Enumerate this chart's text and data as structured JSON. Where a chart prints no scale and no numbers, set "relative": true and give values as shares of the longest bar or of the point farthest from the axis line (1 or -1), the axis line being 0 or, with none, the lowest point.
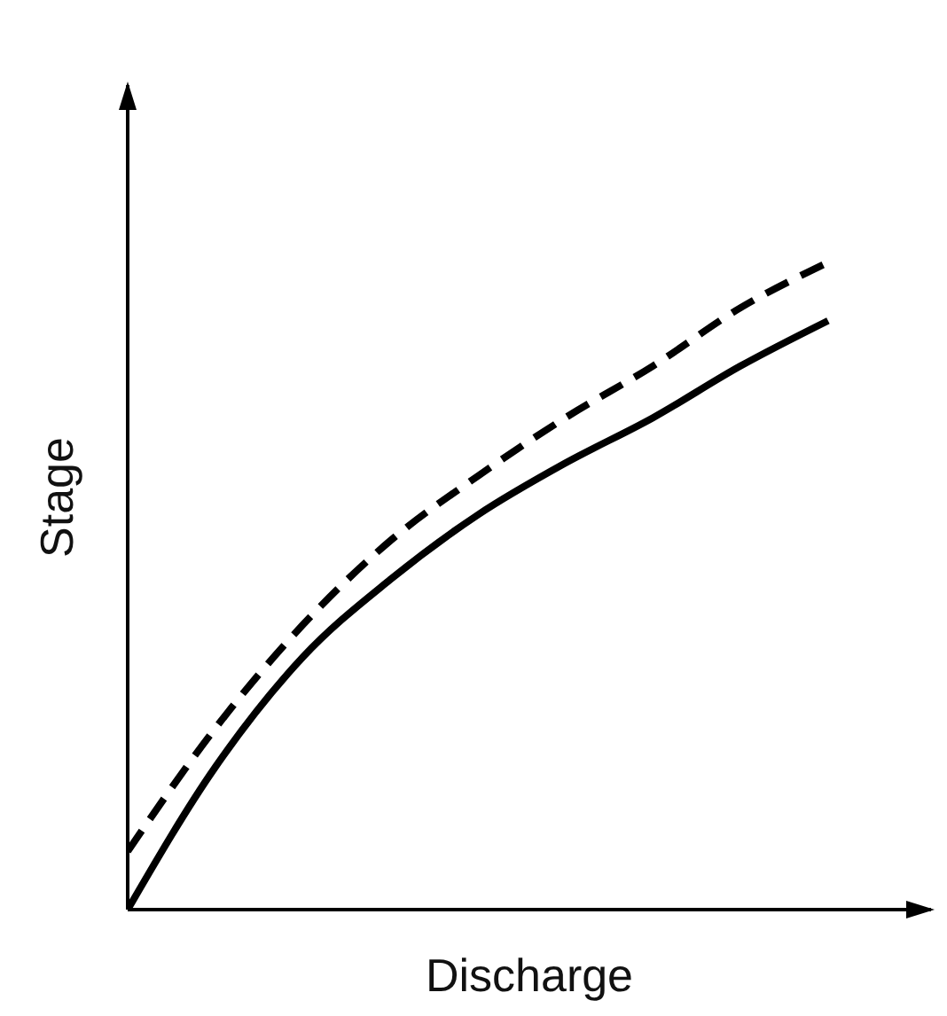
{
  "chart_data": {
    "type": "line",
    "xlabel": "Discharge",
    "ylabel": "Stage",
    "relative": true,
    "marker": "none",
    "categories": [
      null,
      null,
      null,
      null,
      null,
      null,
      null,
      null,
      null
    ],
    "series": [
      {
        "color": "#000000",
        "line_style": "solid",
        "values": [
          0,
          0.22,
          0.39,
          0.51,
          0.61,
          0.69,
          0.76,
          0.84,
          0.91
        ]
      },
      {
        "color": "#000000",
        "line_style": "dashed",
        "values": [
          0.09,
          0.28,
          0.44,
          0.57,
          0.67,
          0.76,
          0.84,
          0.93,
          1
        ]
      }
    ]
  }
}
